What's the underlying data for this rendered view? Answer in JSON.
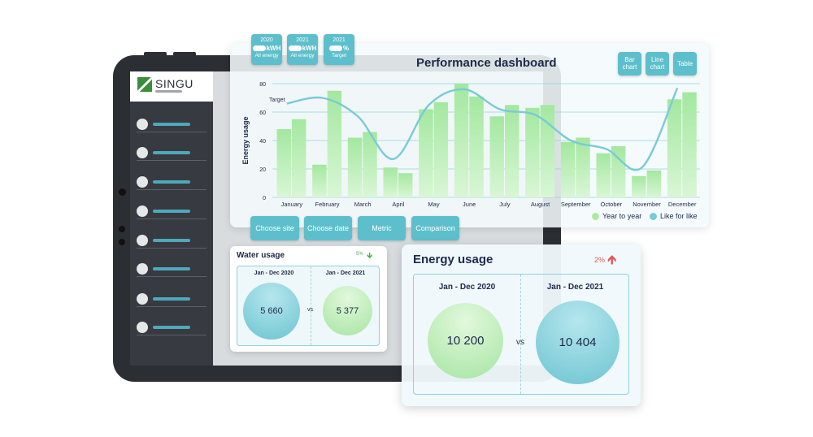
{
  "brand": {
    "name": "SINGU"
  },
  "sidebar": {
    "items": [
      {
        "icon": "dot-icon"
      },
      {
        "icon": "dot-icon"
      },
      {
        "icon": "dot-icon"
      },
      {
        "icon": "dot-icon"
      },
      {
        "icon": "dot-icon"
      },
      {
        "icon": "dot-icon"
      },
      {
        "icon": "dot-icon"
      },
      {
        "icon": "dot-icon"
      }
    ]
  },
  "performance": {
    "title": "Performance dashboard",
    "toggles": [
      {
        "year": "2020",
        "unit": "kWH",
        "label": "All energy"
      },
      {
        "year": "2021",
        "unit": "kWH",
        "label": "All energy"
      },
      {
        "year": "2021",
        "unit": "%",
        "label": "Target"
      }
    ],
    "views": {
      "bar_l1": "Bar",
      "bar_l2": "chart",
      "line_l1": "Line",
      "line_l2": "chart",
      "table": "Table"
    },
    "controls": {
      "site": "Choose site",
      "date": "Choose date",
      "metric": "Metric",
      "comparison": "Comparison"
    }
  },
  "chart_data": {
    "type": "bar",
    "ylabel": "Energy usage",
    "ylim": [
      0,
      80
    ],
    "yticks": [
      0,
      20,
      40,
      60,
      80
    ],
    "categories": [
      "January",
      "February",
      "March",
      "April",
      "May",
      "June",
      "July",
      "August",
      "September",
      "October",
      "November",
      "December"
    ],
    "series": [
      {
        "name": "Year to year",
        "values": [
          48,
          23,
          42,
          21,
          62,
          80,
          57,
          63,
          39,
          31,
          15,
          69
        ]
      },
      {
        "name": "Year to year (2)",
        "values": [
          55,
          75,
          46,
          17,
          67,
          71,
          65,
          65,
          42,
          36,
          19,
          74
        ]
      }
    ],
    "line": {
      "name": "Like for like",
      "values": [
        66,
        70,
        57,
        27,
        65,
        76,
        62,
        58,
        40,
        34,
        21,
        77
      ]
    },
    "target_label": "Target",
    "legend": [
      "Year to year",
      "Like for like"
    ],
    "colors": {
      "bar": "#a9e9a5",
      "line": "#78cbd6",
      "grid": "#8fd3dc"
    }
  },
  "water": {
    "title": "Water usage",
    "change": "5%",
    "period1": "Jan - Dec 2020",
    "period2": "Jan - Dec 2021",
    "value1": "5 660",
    "value2": "5 377",
    "vs": "vs"
  },
  "energy": {
    "title": "Energy usage",
    "change": "2%",
    "period1": "Jan - Dec 2020",
    "period2": "Jan - Dec 2021",
    "value1": "10 200",
    "value2": "10 404",
    "vs": "vs"
  }
}
